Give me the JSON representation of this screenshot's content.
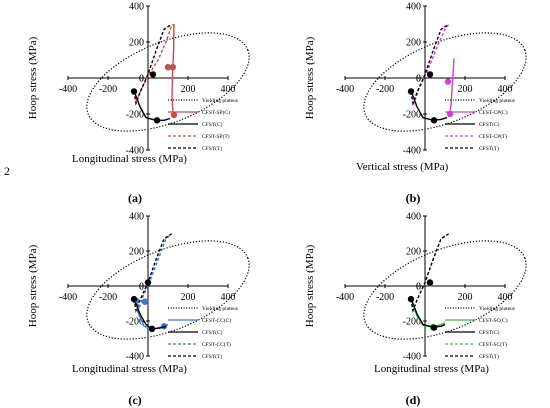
{
  "page_number": "2",
  "chart_data": [
    {
      "type": "line",
      "caption": "(a)",
      "xlabel": "Longitudinal  stress (MPa)",
      "ylabel": "Hoop stress (MPa)",
      "xlim": [
        -400,
        400
      ],
      "ylim": [
        -400,
        400
      ],
      "x_ticks": [
        "-400",
        "-200",
        "0",
        "200",
        "400"
      ],
      "y_ticks": [
        "400",
        "200",
        "0",
        "-200",
        "-400"
      ],
      "series": [
        {
          "name": "Yielding plateus",
          "color": "#000000",
          "dash": "dotted",
          "points": []
        },
        {
          "name": "CFST-SP(C)",
          "color": "#c0504d",
          "dash": "solid",
          "points": [
            [
              130,
              300
            ],
            [
              128,
              150
            ],
            [
              124,
              60
            ],
            [
              120,
              -100
            ],
            [
              125,
              -200
            ],
            [
              132,
              -215
            ]
          ],
          "markers": [
            [
              124,
              60
            ],
            [
              130,
              -205
            ]
          ]
        },
        {
          "name": "CFST(C)",
          "color": "#000000",
          "dash": "solid",
          "points": [
            [
              -70,
              -70
            ],
            [
              -60,
              -100
            ],
            [
              -40,
              -160
            ],
            [
              -10,
              -220
            ],
            [
              40,
              -235
            ],
            [
              80,
              -235
            ],
            [
              110,
              -225
            ]
          ],
          "markers": [
            [
              45,
              -235
            ],
            [
              -70,
              -75
            ]
          ]
        },
        {
          "name": "CFST-SP(T)",
          "color": "#c0504d",
          "dash": "dashed",
          "points": [
            [
              -70,
              -75
            ],
            [
              -60,
              -130
            ],
            [
              -40,
              -80
            ],
            [
              0,
              10
            ],
            [
              50,
              100
            ],
            [
              90,
              200
            ],
            [
              118,
              290
            ],
            [
              130,
              300
            ]
          ],
          "markers": [
            [
              100,
              60
            ]
          ]
        },
        {
          "name": "CFST(T)",
          "color": "#000000",
          "dash": "dashed",
          "points": [
            [
              -70,
              -75
            ],
            [
              -60,
              -140
            ],
            [
              -40,
              -80
            ],
            [
              0,
              20
            ],
            [
              40,
              150
            ],
            [
              80,
              270
            ],
            [
              118,
              298
            ]
          ],
          "markers": [
            [
              25,
              20
            ]
          ]
        }
      ]
    },
    {
      "type": "line",
      "caption": "(b)",
      "xlabel": "Vertical stress (MPa)",
      "ylabel": "Hoop stress (MPa)",
      "xlim": [
        -400,
        400
      ],
      "ylim": [
        -400,
        400
      ],
      "x_ticks": [
        "-400",
        "-200",
        "0",
        "200",
        "400"
      ],
      "y_ticks": [
        "400",
        "200",
        "0",
        "-200",
        "-400"
      ],
      "series": [
        {
          "name": "Yielding plateus",
          "color": "#000000",
          "dash": "dotted",
          "points": []
        },
        {
          "name": "CFST-CP(C)",
          "color": "#cc44cc",
          "dash": "solid",
          "points": [
            [
              145,
              110
            ],
            [
              140,
              20
            ],
            [
              135,
              -60
            ],
            [
              130,
              -150
            ],
            [
              125,
              -200
            ],
            [
              120,
              -210
            ]
          ],
          "markers": [
            [
              125,
              -200
            ]
          ]
        },
        {
          "name": "CFST(C)",
          "color": "#000000",
          "dash": "solid",
          "points": [
            [
              -70,
              -70
            ],
            [
              -60,
              -100
            ],
            [
              -40,
              -160
            ],
            [
              -10,
              -220
            ],
            [
              40,
              -235
            ],
            [
              80,
              -230
            ],
            [
              110,
              -220
            ]
          ],
          "markers": [
            [
              45,
              -235
            ],
            [
              -70,
              -75
            ]
          ]
        },
        {
          "name": "CFST-CP(T)",
          "color": "#cc44cc",
          "dash": "dashed",
          "points": [
            [
              -70,
              -75
            ],
            [
              -55,
              -140
            ],
            [
              -30,
              -60
            ],
            [
              20,
              60
            ],
            [
              60,
              170
            ],
            [
              100,
              270
            ],
            [
              120,
              300
            ]
          ],
          "markers": [
            [
              115,
              -20
            ]
          ]
        },
        {
          "name": "CFST(T)",
          "color": "#000000",
          "dash": "dashed",
          "points": [
            [
              -70,
              -75
            ],
            [
              -60,
              -140
            ],
            [
              -40,
              -80
            ],
            [
              0,
              20
            ],
            [
              40,
              150
            ],
            [
              80,
              270
            ],
            [
              118,
              298
            ]
          ],
          "markers": [
            [
              25,
              20
            ]
          ]
        }
      ]
    },
    {
      "type": "line",
      "caption": "(c)",
      "xlabel": "Longitudinal stress (MPa)",
      "ylabel": "Hoop stress (MPa)",
      "xlim": [
        -400,
        400
      ],
      "ylim": [
        -400,
        400
      ],
      "x_ticks": [
        "-400",
        "-200",
        "0",
        "200",
        "400"
      ],
      "y_ticks": [
        "400",
        "200",
        "0",
        "-200",
        "-400"
      ],
      "series": [
        {
          "name": "Yielding plateus",
          "color": "#000000",
          "dash": "dotted",
          "points": []
        },
        {
          "name": "CFST-CC(C)",
          "color": "#4472c4",
          "dash": "solid",
          "points": [
            [
              -60,
              -80
            ],
            [
              -50,
              -150
            ],
            [
              -20,
              -230
            ],
            [
              30,
              -245
            ],
            [
              80,
              -230
            ],
            [
              100,
              -220
            ]
          ],
          "markers": [
            [
              -60,
              -85
            ],
            [
              80,
              -230
            ]
          ]
        },
        {
          "name": "CFST(C)",
          "color": "#000000",
          "dash": "solid",
          "points": [
            [
              -70,
              -70
            ],
            [
              -60,
              -100
            ],
            [
              -40,
              -160
            ],
            [
              -10,
              -220
            ],
            [
              20,
              -245
            ],
            [
              60,
              -240
            ],
            [
              90,
              -230
            ]
          ],
          "markers": [
            [
              20,
              -245
            ],
            [
              -70,
              -75
            ]
          ]
        },
        {
          "name": "CFST-CC(T)",
          "color": "#4472c4",
          "dash": "dashed",
          "points": [
            [
              -60,
              -85
            ],
            [
              -45,
              -130
            ],
            [
              -25,
              -60
            ],
            [
              10,
              30
            ],
            [
              50,
              150
            ],
            [
              90,
              270
            ],
            [
              118,
              298
            ]
          ],
          "markers": [
            [
              -15,
              -90
            ]
          ]
        },
        {
          "name": "CFST(T)",
          "color": "#000000",
          "dash": "dashed",
          "points": [
            [
              -70,
              -75
            ],
            [
              -60,
              -140
            ],
            [
              -40,
              -80
            ],
            [
              0,
              20
            ],
            [
              40,
              150
            ],
            [
              80,
              270
            ],
            [
              118,
              298
            ]
          ],
          "markers": [
            [
              0,
              20
            ]
          ]
        }
      ]
    },
    {
      "type": "line",
      "caption": "(d)",
      "xlabel": "Longitudinal stress (MPa)",
      "ylabel": "Hoop stress (MPa)",
      "xlim": [
        -400,
        400
      ],
      "ylim": [
        -400,
        400
      ],
      "x_ticks": [
        "-400",
        "-200",
        "0",
        "200",
        "400"
      ],
      "y_ticks": [
        "400",
        "200",
        "0",
        "-200",
        "-400"
      ],
      "series": [
        {
          "name": "Yielding plateus",
          "color": "#000000",
          "dash": "dotted",
          "points": []
        },
        {
          "name": "CFST-SC(C)",
          "color": "#4caf50",
          "dash": "solid",
          "points": [
            [
              -70,
              -70
            ],
            [
              -60,
              -110
            ],
            [
              -40,
              -170
            ],
            [
              -10,
              -225
            ],
            [
              40,
              -235
            ],
            [
              80,
              -220
            ],
            [
              100,
              -210
            ]
          ],
          "markers": [
            [
              40,
              -235
            ]
          ]
        },
        {
          "name": "CFST(C)",
          "color": "#000000",
          "dash": "solid",
          "points": [
            [
              -70,
              -70
            ],
            [
              -60,
              -100
            ],
            [
              -40,
              -160
            ],
            [
              -10,
              -220
            ],
            [
              40,
              -235
            ],
            [
              80,
              -230
            ],
            [
              100,
              -220
            ]
          ],
          "markers": [
            [
              45,
              -238
            ],
            [
              -70,
              -75
            ]
          ]
        },
        {
          "name": "CFST-SC(T)",
          "color": "#4caf50",
          "dash": "dashed",
          "points": [
            [
              -70,
              -75
            ],
            [
              -60,
              -140
            ],
            [
              -40,
              -80
            ],
            [
              0,
              20
            ],
            [
              40,
              150
            ],
            [
              80,
              270
            ],
            [
              118,
              298
            ]
          ],
          "markers": [
            [
              25,
              15
            ]
          ]
        },
        {
          "name": "CFST(T)",
          "color": "#000000",
          "dash": "dashed",
          "points": [
            [
              -70,
              -75
            ],
            [
              -60,
              -140
            ],
            [
              -40,
              -80
            ],
            [
              0,
              20
            ],
            [
              40,
              150
            ],
            [
              80,
              270
            ],
            [
              118,
              298
            ]
          ],
          "markers": [
            [
              25,
              20
            ]
          ]
        }
      ]
    }
  ]
}
